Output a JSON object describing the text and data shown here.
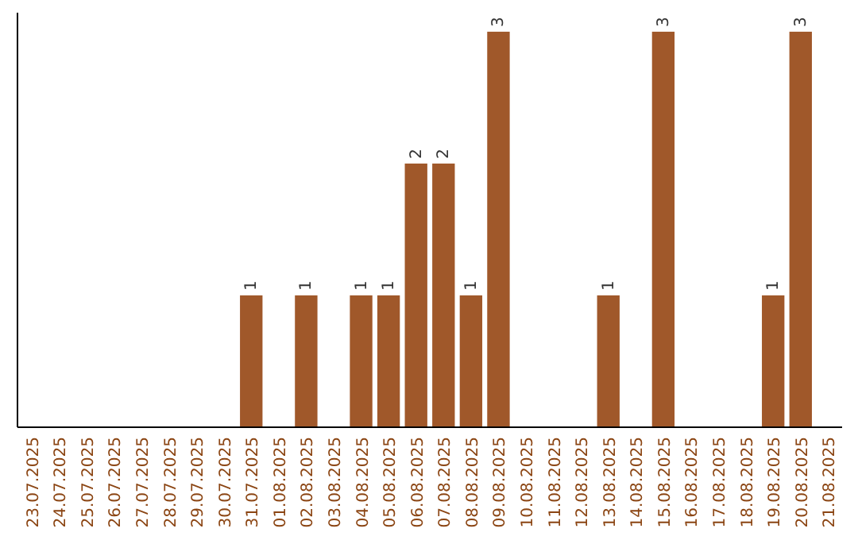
{
  "chart_data": {
    "type": "bar",
    "categories": [
      "23.07.2025",
      "24.07.2025",
      "25.07.2025",
      "26.07.2025",
      "27.07.2025",
      "28.07.2025",
      "29.07.2025",
      "30.07.2025",
      "31.07.2025",
      "01.08.2025",
      "02.08.2025",
      "03.08.2025",
      "04.08.2025",
      "05.08.2025",
      "06.08.2025",
      "07.08.2025",
      "08.08.2025",
      "09.08.2025",
      "10.08.2025",
      "11.08.2025",
      "12.08.2025",
      "13.08.2025",
      "14.08.2025",
      "15.08.2025",
      "16.08.2025",
      "17.08.2025",
      "18.08.2025",
      "19.08.2025",
      "20.08.2025",
      "21.08.2025"
    ],
    "values": [
      0,
      0,
      0,
      0,
      0,
      0,
      0,
      0,
      1,
      0,
      1,
      0,
      1,
      1,
      2,
      2,
      1,
      3,
      0,
      0,
      0,
      1,
      0,
      3,
      0,
      0,
      0,
      1,
      3,
      0
    ],
    "value_labels": [
      null,
      null,
      null,
      null,
      null,
      null,
      null,
      null,
      "1",
      null,
      "1",
      null,
      "1",
      "1",
      "2",
      "2",
      "1",
      "3",
      null,
      null,
      null,
      "1",
      null,
      "3",
      null,
      null,
      null,
      "1",
      "3",
      null
    ],
    "color": "#a0582a"
  }
}
